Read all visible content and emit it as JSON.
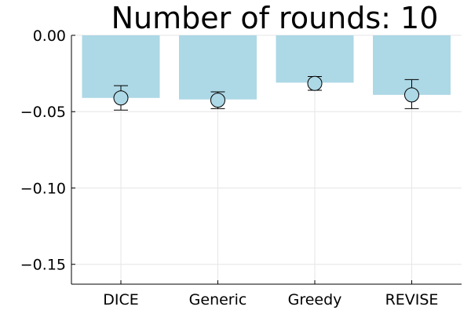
{
  "chart_data": {
    "type": "bar",
    "title": "Number of rounds: 10",
    "xlabel": "",
    "ylabel": "",
    "categories": [
      "DICE",
      "Generic",
      "Greedy",
      "REVISE"
    ],
    "values": [
      -0.041,
      -0.042,
      -0.031,
      -0.039
    ],
    "points": [
      -0.041,
      -0.0425,
      -0.0315,
      -0.039
    ],
    "error_low": [
      -0.049,
      -0.048,
      -0.036,
      -0.048
    ],
    "error_high": [
      -0.033,
      -0.037,
      -0.027,
      -0.029
    ],
    "ylim": [
      -0.163,
      0.0
    ],
    "yticks": [
      0.0,
      -0.05,
      -0.1,
      -0.15
    ],
    "ytick_labels": [
      "0.00",
      "−0.05",
      "−0.10",
      "−0.15"
    ],
    "grid": true,
    "legend": "none",
    "colors": {
      "bar": "#add8e6",
      "marker_fill": "#add8e6",
      "marker_stroke": "#000000",
      "errorbar": "#000000",
      "grid": "#e6e6e6",
      "axis": "#000000"
    }
  }
}
